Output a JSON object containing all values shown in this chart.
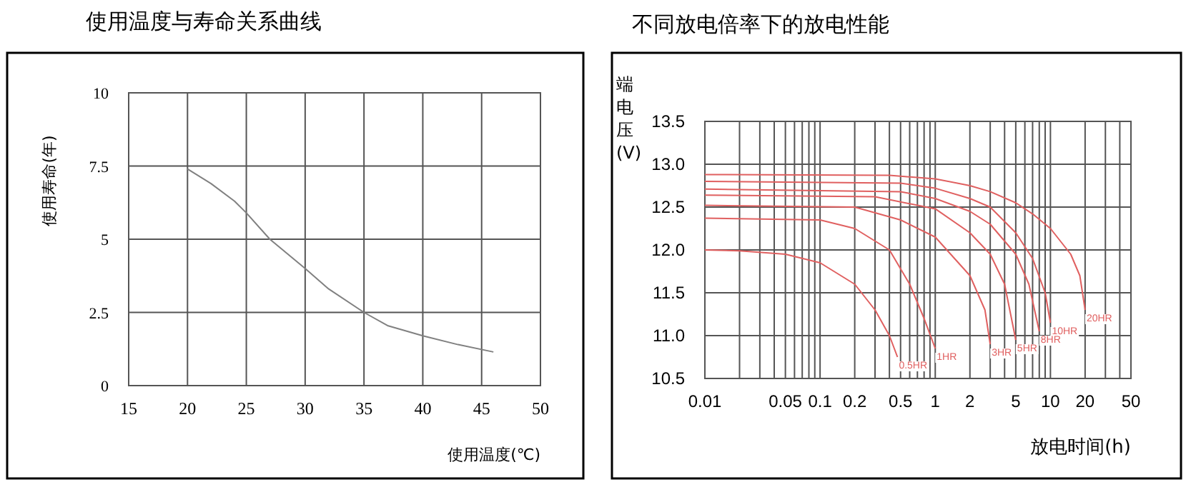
{
  "chart_data": [
    {
      "type": "line",
      "title": "使用温度与寿命关系曲线",
      "xlabel": "使用温度(℃)",
      "ylabel": "使用寿命(年)",
      "xlim": [
        15,
        50
      ],
      "xticks": [
        15,
        20,
        25,
        30,
        35,
        40,
        45,
        50
      ],
      "ylim": [
        0,
        10
      ],
      "yticks": [
        0,
        2.5,
        5,
        7.5,
        10
      ],
      "grid": true,
      "series": [
        {
          "color": "#808080",
          "x": [
            20,
            22,
            24,
            25,
            27,
            30,
            32,
            35,
            37,
            40,
            43,
            46
          ],
          "values": [
            7.4,
            6.9,
            6.3,
            5.9,
            5.0,
            4.0,
            3.3,
            2.5,
            2.05,
            1.7,
            1.4,
            1.15
          ]
        }
      ]
    },
    {
      "type": "line",
      "title": "不同放电倍率下的放电性能",
      "xlabel": "放电时间(h)",
      "ylabel": "端电压(V)",
      "log": "x",
      "grid": true,
      "xlim": [
        0.01,
        50
      ],
      "xticks": [
        0.01,
        {
          "value": 0.02,
          "label": null
        },
        {
          "value": 0.03,
          "label": null
        },
        {
          "value": 0.04,
          "label": null
        },
        0.05,
        {
          "value": 0.06,
          "label": null
        },
        {
          "value": 0.07,
          "label": null
        },
        {
          "value": 0.08,
          "label": null
        },
        {
          "value": 0.09,
          "label": null
        },
        0.1,
        0.2,
        {
          "value": 0.3,
          "label": null
        },
        {
          "value": 0.4,
          "label": null
        },
        0.5,
        {
          "value": 0.6,
          "label": null
        },
        {
          "value": 0.7,
          "label": null
        },
        {
          "value": 0.8,
          "label": null
        },
        {
          "value": 0.9,
          "label": null
        },
        1,
        2,
        {
          "value": 3,
          "label": null
        },
        {
          "value": 4,
          "label": null
        },
        5,
        {
          "value": 6,
          "label": null
        },
        {
          "value": 7,
          "label": null
        },
        {
          "value": 8,
          "label": null
        },
        {
          "value": 9,
          "label": null
        },
        10,
        20,
        {
          "value": 30,
          "label": null
        },
        {
          "value": 40,
          "label": null
        },
        50
      ],
      "ylim": [
        10.5,
        13.5
      ],
      "yticks": [
        10.5,
        {
          "value": 11,
          "label": "11.0"
        },
        11.5,
        {
          "value": 12,
          "label": "12.0"
        },
        12.5,
        {
          "value": 13,
          "label": "13.0"
        },
        13.5
      ],
      "series": [
        {
          "name": "20HR",
          "color": "#e06060",
          "x": [
            0.01,
            0.4,
            1,
            2,
            3,
            5,
            7,
            10,
            15,
            18,
            20
          ],
          "values": [
            12.88,
            12.87,
            12.83,
            12.75,
            12.68,
            12.55,
            12.42,
            12.25,
            11.95,
            11.7,
            11.3
          ]
        },
        {
          "name": "10HR",
          "color": "#e06060",
          "x": [
            0.01,
            0.5,
            1,
            2,
            3,
            5,
            7,
            9,
            10
          ],
          "values": [
            12.8,
            12.78,
            12.72,
            12.6,
            12.5,
            12.2,
            11.9,
            11.5,
            11.15
          ]
        },
        {
          "name": "8HR",
          "color": "#e06060",
          "x": [
            0.01,
            0.5,
            1,
            2,
            3,
            5,
            6.5,
            8
          ],
          "values": [
            12.71,
            12.68,
            12.6,
            12.45,
            12.3,
            11.95,
            11.6,
            11.05
          ]
        },
        {
          "name": "5HR",
          "color": "#e06060",
          "x": [
            0.01,
            0.3,
            1,
            2,
            3,
            4,
            5
          ],
          "values": [
            12.64,
            12.62,
            12.48,
            12.2,
            11.95,
            11.6,
            10.95
          ]
        },
        {
          "name": "3HR",
          "color": "#e06060",
          "x": [
            0.01,
            0.2,
            0.5,
            1,
            2,
            2.7,
            3
          ],
          "values": [
            12.52,
            12.5,
            12.35,
            12.15,
            11.7,
            11.3,
            10.9
          ]
        },
        {
          "name": "1HR",
          "color": "#e06060",
          "x": [
            0.01,
            0.1,
            0.2,
            0.4,
            0.6,
            0.8,
            1
          ],
          "values": [
            12.37,
            12.35,
            12.25,
            12.0,
            11.6,
            11.2,
            10.85
          ]
        },
        {
          "name": "0.5HR",
          "color": "#e06060",
          "x": [
            0.01,
            0.02,
            0.05,
            0.1,
            0.2,
            0.3,
            0.4,
            0.47
          ],
          "values": [
            12.0,
            11.99,
            11.95,
            11.85,
            11.6,
            11.3,
            11.0,
            10.75
          ]
        }
      ]
    }
  ]
}
